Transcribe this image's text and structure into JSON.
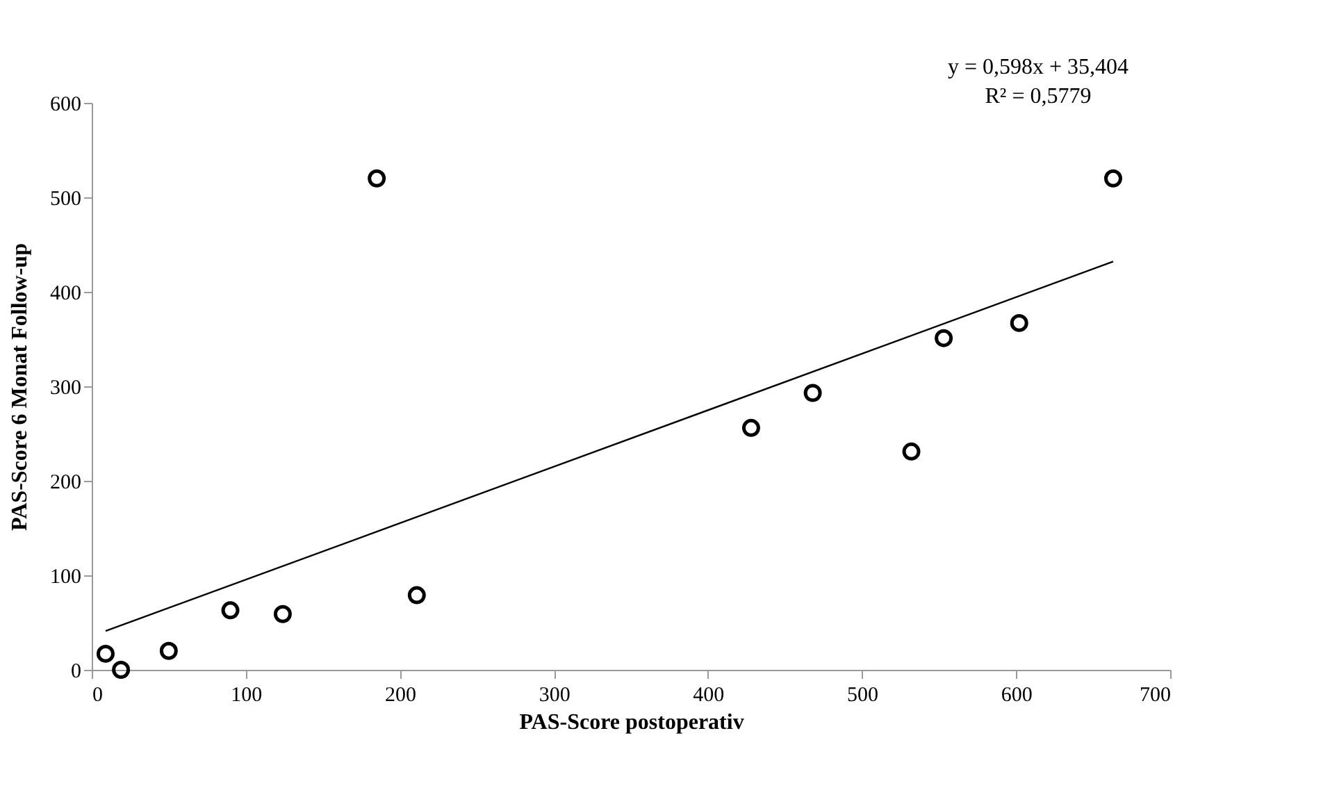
{
  "chart_data": {
    "type": "scatter",
    "xlabel": "PAS-Score postoperativ",
    "ylabel": "PAS-Score 6 Monat Follow-up",
    "xlim": [
      0,
      700
    ],
    "xticks": [
      0,
      100,
      200,
      300,
      400,
      500,
      600,
      700
    ],
    "ylim": [
      0,
      600
    ],
    "yticks": [
      0,
      100,
      200,
      300,
      400,
      500,
      600
    ],
    "grid": false,
    "series": [
      {
        "color": "#000000",
        "marker": "circle",
        "x": [
          9,
          19,
          50,
          90,
          124,
          211,
          185,
          428,
          468,
          532,
          553,
          602,
          663
        ],
        "values": [
          17,
          0,
          20,
          63,
          59,
          79,
          520,
          256,
          293,
          231,
          351,
          367,
          520
        ]
      },
      {
        "type": "line",
        "color": "#000000",
        "line_style": "solid",
        "x": [
          9,
          663
        ],
        "values": [
          41,
          432
        ]
      }
    ],
    "annotations": [
      "y = 0,598x + 35,404",
      "R² = 0,5779"
    ]
  }
}
